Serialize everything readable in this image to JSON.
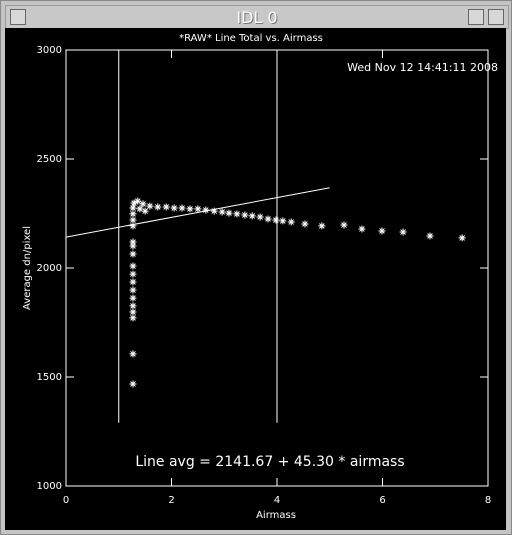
{
  "window": {
    "title": "IDL 0"
  },
  "chart_data": {
    "type": "scatter",
    "title": "*RAW* Line Total vs. Airmass",
    "timestamp": "Wed Nov 12 14:41:11 2008",
    "annotation": "Line avg = 2141.67 + 45.30 * airmass",
    "x_label": "Airmass",
    "y_label": "Average dn/pixel",
    "xlim": [
      0,
      8
    ],
    "xticks": [
      0,
      2,
      4,
      6,
      8
    ],
    "ylim": [
      1000,
      3000
    ],
    "yticks": [
      1000,
      1500,
      2000,
      2500,
      3000
    ],
    "color": "#ffffff",
    "x": [
      1.27,
      1.27,
      1.27,
      1.27,
      1.27,
      1.27,
      1.27,
      1.27,
      1.27,
      1.27,
      1.27,
      1.27,
      1.27,
      1.27,
      1.27,
      1.27,
      1.27,
      1.29,
      1.36,
      1.4,
      1.46,
      1.5,
      1.59,
      1.74,
      1.9,
      2.05,
      2.2,
      2.35,
      2.5,
      2.65,
      2.81,
      2.96,
      3.09,
      3.24,
      3.39,
      3.53,
      3.68,
      3.83,
      3.98,
      4.11,
      4.27,
      4.53,
      4.85,
      5.27,
      5.61,
      5.99,
      6.39,
      6.9,
      7.51
    ],
    "values": [
      1468,
      1606,
      1771,
      1798,
      1826,
      1862,
      1899,
      1936,
      1972,
      2009,
      2064,
      2101,
      2119,
      2193,
      2220,
      2248,
      2275,
      2298,
      2307,
      2271,
      2294,
      2261,
      2284,
      2280,
      2280,
      2275,
      2275,
      2271,
      2271,
      2266,
      2261,
      2257,
      2252,
      2248,
      2243,
      2239,
      2234,
      2225,
      2220,
      2216,
      2211,
      2202,
      2193,
      2197,
      2179,
      2170,
      2165,
      2147,
      2138
    ],
    "fit": {
      "intercept": 2141.67,
      "slope": 45.3,
      "xrange": [
        0,
        5
      ]
    },
    "vlines": [
      1,
      4
    ],
    "vline_range": [
      1290,
      3000
    ]
  }
}
